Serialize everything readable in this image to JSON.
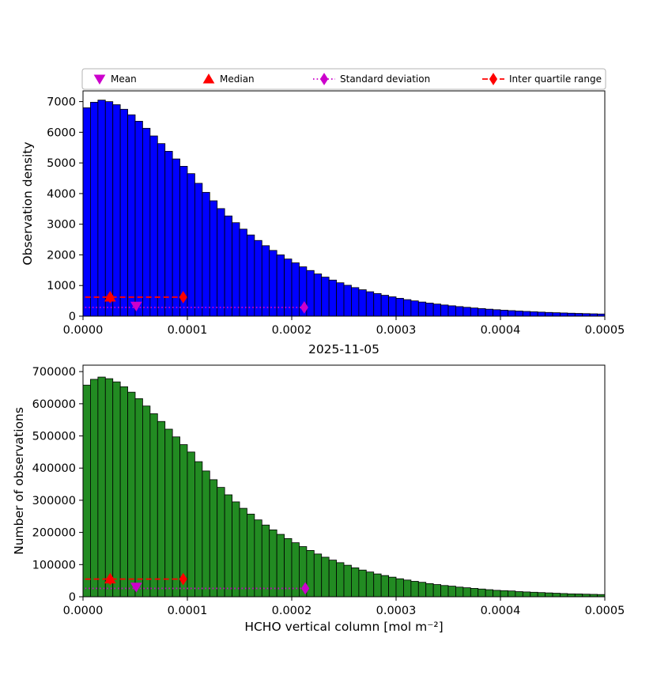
{
  "figure": {
    "title": "2025-11-05"
  },
  "colors": {
    "mean": "#cc00cc",
    "median": "#ff0000",
    "std": "#cc00cc",
    "iqr": "#ff0000",
    "top_bar": "#0000ff",
    "bottom_bar": "#228b22",
    "bar_edge": "#000000",
    "legend_border": "#b3b3b3"
  },
  "legend": {
    "entries": [
      {
        "label": "Mean",
        "marker": "triangle-down",
        "color": "#cc00cc"
      },
      {
        "label": "Median",
        "marker": "triangle-up",
        "color": "#ff0000"
      },
      {
        "label": "Standard deviation",
        "marker": "diamond-dotted",
        "color": "#cc00cc"
      },
      {
        "label": "Inter quartile range",
        "marker": "diamond-dashed",
        "color": "#ff0000"
      }
    ]
  },
  "chart_data": [
    {
      "type": "bar",
      "title": "",
      "ylabel": "Observation density",
      "xlabel": "",
      "bar_color": "#0000ff",
      "xlim": [
        0,
        0.0005
      ],
      "ylim": [
        0,
        7350
      ],
      "yticks": [
        0,
        1000,
        2000,
        3000,
        4000,
        5000,
        6000,
        7000
      ],
      "ytick_labels": [
        "0",
        "1000",
        "2000",
        "3000",
        "4000",
        "5000",
        "6000",
        "7000"
      ],
      "xticks": [
        0,
        0.0001,
        0.0002,
        0.0003,
        0.0004,
        0.0005
      ],
      "xtick_labels": [
        "0.0000",
        "0.0001",
        "0.0002",
        "0.0003",
        "0.0004",
        "0.0005"
      ],
      "bin_start": 0,
      "bin_width": 7.143e-06,
      "values": [
        6800,
        6980,
        7050,
        7000,
        6900,
        6750,
        6570,
        6360,
        6130,
        5880,
        5630,
        5380,
        5130,
        4890,
        4650,
        4335,
        4040,
        3765,
        3510,
        3270,
        3050,
        2840,
        2650,
        2470,
        2300,
        2145,
        2000,
        1865,
        1740,
        1610,
        1490,
        1378,
        1274,
        1178,
        1090,
        1008,
        932,
        862,
        797,
        737,
        682,
        631,
        583,
        539,
        499,
        461,
        427,
        395,
        365,
        338,
        312,
        289,
        267,
        247,
        228,
        211,
        195,
        181,
        167,
        155,
        143,
        132,
        122,
        113,
        105,
        97,
        90,
        83,
        77,
        71
      ],
      "markers": {
        "mean": {
          "x": 5.1e-05,
          "y": 330
        },
        "median": {
          "x": 2.6e-05,
          "y": 620
        },
        "std": {
          "x_start": 2e-06,
          "x_end": 0.000212,
          "y": 285,
          "diamonds": [
            0.000212
          ]
        },
        "iqr": {
          "x_start": 2e-06,
          "x_end": 9.6e-05,
          "y": 620,
          "diamonds": [
            2.6e-05,
            9.6e-05
          ]
        }
      }
    },
    {
      "type": "bar",
      "title": "2025-11-05",
      "ylabel": "Number of observations",
      "xlabel": "HCHO vertical column [mol m⁻²]",
      "bar_color": "#228b22",
      "xlim": [
        0,
        0.0005
      ],
      "ylim": [
        0,
        720000
      ],
      "yticks": [
        0,
        100000,
        200000,
        300000,
        400000,
        500000,
        600000,
        700000
      ],
      "ytick_labels": [
        "0",
        "100000",
        "200000",
        "300000",
        "400000",
        "500000",
        "600000",
        "700000"
      ],
      "xticks": [
        0,
        0.0001,
        0.0002,
        0.0003,
        0.0004,
        0.0005
      ],
      "xtick_labels": [
        "0.0000",
        "0.0001",
        "0.0002",
        "0.0003",
        "0.0004",
        "0.0005"
      ],
      "bin_start": 0,
      "bin_width": 7.143e-06,
      "values": [
        658000,
        676000,
        683000,
        678000,
        668000,
        653000,
        636000,
        616000,
        593000,
        569000,
        545000,
        521000,
        497000,
        473000,
        450000,
        420000,
        391000,
        364000,
        340000,
        317000,
        295000,
        275000,
        257000,
        239000,
        223000,
        208000,
        194000,
        181000,
        168000,
        156000,
        144000,
        133000,
        123000,
        114000,
        106000,
        98000,
        90000,
        83000,
        77000,
        71000,
        66000,
        61000,
        56000,
        52000,
        48000,
        45000,
        41000,
        38000,
        35000,
        33000,
        30000,
        28000,
        26000,
        24000,
        22000,
        20000,
        19000,
        18000,
        16000,
        15000,
        14000,
        13000,
        12000,
        11000,
        10000,
        9000,
        8700,
        8000,
        7500,
        6900
      ],
      "markers": {
        "mean": {
          "x": 5.1e-05,
          "y": 30000
        },
        "median": {
          "x": 2.6e-05,
          "y": 55000
        },
        "std": {
          "x_start": 2e-06,
          "x_end": 0.000213,
          "y": 26000,
          "diamonds": [
            0.000213
          ]
        },
        "iqr": {
          "x_start": 2e-06,
          "x_end": 9.6e-05,
          "y": 55000,
          "diamonds": [
            2.6e-05,
            9.6e-05
          ]
        }
      }
    }
  ]
}
